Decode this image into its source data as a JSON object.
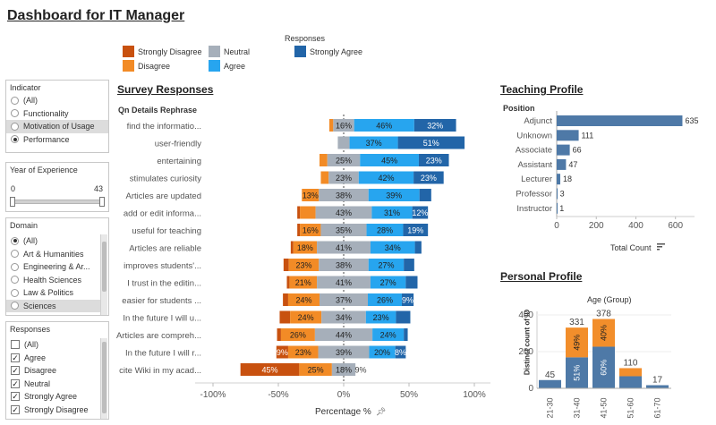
{
  "page": {
    "title": "Dashboard for IT Manager"
  },
  "legend": {
    "title": "Responses",
    "items": [
      {
        "label": "Strongly Disagree",
        "color": "#c8510f"
      },
      {
        "label": "Neutral",
        "color": "#a6afba"
      },
      {
        "label": "Strongly Agree",
        "color": "#2265a8"
      },
      {
        "label": "Disagree",
        "color": "#f28b26"
      },
      {
        "label": "Agree",
        "color": "#27a5ef"
      }
    ]
  },
  "filters": {
    "indicator": {
      "title": "Indicator",
      "options": [
        {
          "label": "(All)",
          "state": "off"
        },
        {
          "label": "Functionality",
          "state": "off"
        },
        {
          "label": "Motivation of Usage",
          "state": "off"
        },
        {
          "label": "Performance",
          "state": "on"
        }
      ]
    },
    "experience": {
      "title": "Year of Experience",
      "min": "0",
      "max": "43"
    },
    "domain": {
      "title": "Domain",
      "options": [
        {
          "label": "(All)",
          "state": "on"
        },
        {
          "label": "Art & Humanities",
          "state": "off"
        },
        {
          "label": "Engineering & Ar...",
          "state": "off"
        },
        {
          "label": "Health Sciences",
          "state": "off"
        },
        {
          "label": "Law & Politics",
          "state": "off"
        },
        {
          "label": "Sciences",
          "state": "off"
        }
      ]
    },
    "responses": {
      "title": "Responses",
      "options": [
        {
          "label": "(All)",
          "checked": false
        },
        {
          "label": "Agree",
          "checked": true
        },
        {
          "label": "Disagree",
          "checked": true
        },
        {
          "label": "Neutral",
          "checked": true
        },
        {
          "label": "Strongly Agree",
          "checked": true
        },
        {
          "label": "Strongly Disagree",
          "checked": true
        }
      ]
    }
  },
  "survey": {
    "title": "Survey Responses",
    "column_header": "Qn Details Rephrase",
    "xlabel": "Percentage %",
    "pin_icon": "pin-icon"
  },
  "teaching": {
    "title": "Teaching Profile",
    "column_header": "Position",
    "xlabel": "Total Count",
    "sort_icon": "sort-icon"
  },
  "personal": {
    "title": "Personal Profile",
    "chart_title": "Age (Group)",
    "ylabel": "Distinct count of ID"
  },
  "chart_data": [
    {
      "type": "bar",
      "title": "Survey Responses",
      "orientation": "horizontal-diverging",
      "xlabel": "Percentage %",
      "xlim": [
        -100,
        100
      ],
      "xticks": [
        "-100%",
        "-50%",
        "0%",
        "50%",
        "100%"
      ],
      "series_order": [
        "Strongly Disagree",
        "Disagree",
        "Neutral",
        "Agree",
        "Strongly Agree"
      ],
      "categories": [
        "find the informatio...",
        "user-friendly",
        "entertaining",
        "stimulates curiosity",
        "Articles are updated",
        "add or edit informa...",
        "useful for teaching",
        "Articles are reliable",
        "improves students'...",
        "I trust in the editin...",
        "easier for students ...",
        "In the future I will u...",
        "Articles are compreh...",
        "In the future I will r...",
        "cite Wiki in my acad..."
      ],
      "rows": [
        {
          "sd": 0,
          "d": 3,
          "n": 16,
          "a": 46,
          "sa": 32,
          "labels": [
            "",
            "",
            "16%",
            "46%",
            "32%"
          ]
        },
        {
          "sd": 0,
          "d": 0,
          "n": 9,
          "a": 37,
          "sa": 51,
          "labels": [
            "",
            "",
            "",
            "37%",
            "51%"
          ]
        },
        {
          "sd": 0,
          "d": 6,
          "n": 25,
          "a": 45,
          "sa": 23,
          "labels": [
            "",
            "",
            "25%",
            "45%",
            "23%"
          ]
        },
        {
          "sd": 0,
          "d": 6,
          "n": 23,
          "a": 42,
          "sa": 23,
          "labels": [
            "",
            "",
            "23%",
            "42%",
            "23%"
          ]
        },
        {
          "sd": 0,
          "d": 13,
          "n": 38,
          "a": 39,
          "sa": 9,
          "labels": [
            "",
            "13%",
            "38%",
            "39%",
            ""
          ]
        },
        {
          "sd": 2,
          "d": 12,
          "n": 43,
          "a": 31,
          "sa": 12,
          "labels": [
            "",
            "",
            "43%",
            "31%",
            "12%"
          ]
        },
        {
          "sd": 2,
          "d": 16,
          "n": 35,
          "a": 28,
          "sa": 19,
          "labels": [
            "",
            "16%",
            "35%",
            "28%",
            "19%"
          ]
        },
        {
          "sd": 2,
          "d": 18,
          "n": 41,
          "a": 34,
          "sa": 5,
          "labels": [
            "",
            "18%",
            "41%",
            "34%",
            ""
          ]
        },
        {
          "sd": 4,
          "d": 23,
          "n": 38,
          "a": 27,
          "sa": 8,
          "labels": [
            "",
            "23%",
            "38%",
            "27%",
            ""
          ]
        },
        {
          "sd": 2,
          "d": 21,
          "n": 41,
          "a": 27,
          "sa": 9,
          "labels": [
            "",
            "21%",
            "41%",
            "27%",
            ""
          ]
        },
        {
          "sd": 4,
          "d": 24,
          "n": 37,
          "a": 26,
          "sa": 9,
          "labels": [
            "",
            "24%",
            "37%",
            "26%",
            "9%"
          ]
        },
        {
          "sd": 8,
          "d": 24,
          "n": 34,
          "a": 23,
          "sa": 11,
          "labels": [
            "",
            "24%",
            "34%",
            "23%",
            ""
          ]
        },
        {
          "sd": 3,
          "d": 26,
          "n": 44,
          "a": 24,
          "sa": 3,
          "labels": [
            "",
            "26%",
            "44%",
            "24%",
            ""
          ]
        },
        {
          "sd": 9,
          "d": 23,
          "n": 39,
          "a": 20,
          "sa": 8,
          "labels": [
            "9%",
            "23%",
            "39%",
            "20%",
            "8%"
          ]
        },
        {
          "sd": 45,
          "d": 25,
          "n": 18,
          "a": 0,
          "sa": 0,
          "labels": [
            "45%",
            "25%",
            "18%",
            "",
            ""
          ]
        }
      ],
      "extra_label": "9%"
    },
    {
      "type": "bar",
      "title": "Teaching Profile",
      "orientation": "horizontal",
      "xlabel": "Total Count",
      "xlim": [
        0,
        660
      ],
      "xticks": [
        0,
        200,
        400,
        600
      ],
      "categories": [
        "Adjunct",
        "Unknown",
        "Associate",
        "Assistant",
        "Lecturer",
        "Professor",
        "Instructor"
      ],
      "values": [
        635,
        111,
        66,
        47,
        18,
        3,
        1
      ]
    },
    {
      "type": "bar",
      "title": "Personal Profile",
      "subtitle": "Age (Group)",
      "orientation": "vertical-stacked",
      "ylabel": "Distinct count of ID",
      "ylim": [
        0,
        420
      ],
      "yticks": [
        0,
        200,
        400
      ],
      "categories": [
        "21-30",
        "31-40",
        "41-50",
        "51-60",
        "61-70"
      ],
      "totals": [
        45,
        331,
        378,
        110,
        17
      ],
      "series": [
        {
          "name": "bottom",
          "color": "#4e79a7",
          "values": [
            45,
            169,
            227,
            66,
            17
          ],
          "labels": [
            "",
            "51%",
            "60%",
            "",
            ""
          ]
        },
        {
          "name": "top",
          "color": "#f28e2b",
          "values": [
            0,
            162,
            151,
            44,
            0
          ],
          "labels": [
            "",
            "49%",
            "40%",
            "",
            ""
          ]
        }
      ]
    }
  ]
}
